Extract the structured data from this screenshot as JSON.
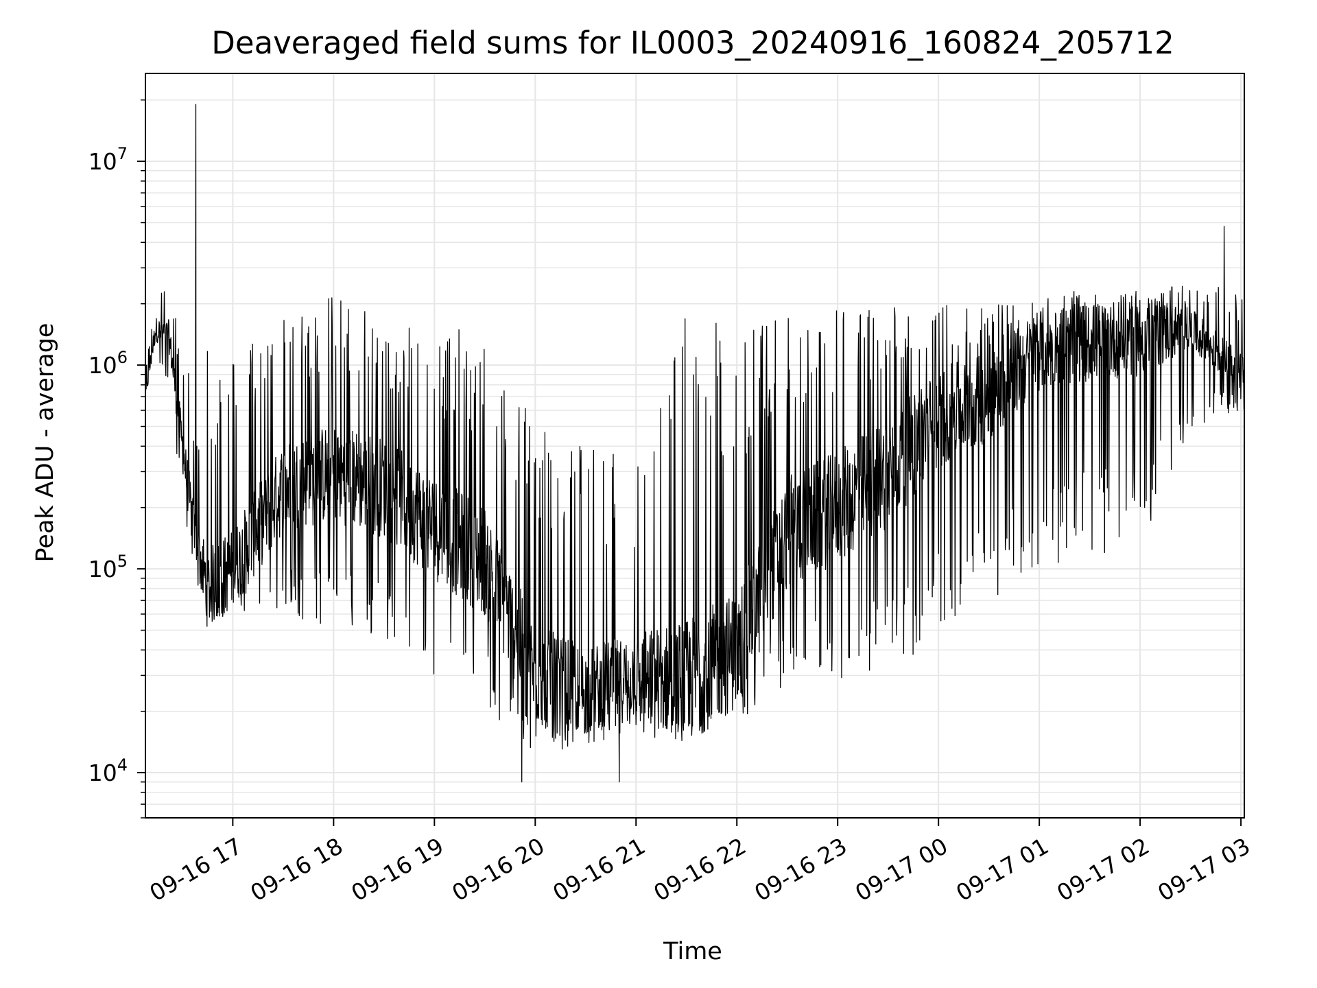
{
  "chart_data": {
    "type": "line",
    "title": "Deaveraged field sums for IL0003_20240916_160824_205712",
    "xlabel": "Time",
    "ylabel": "Peak ADU - average",
    "y_scale": "log",
    "ylim": [
      6000,
      27000000
    ],
    "xlim": [
      "09-16 16:08",
      "09-17 03:02"
    ],
    "grid": true,
    "line_color": "#000000",
    "grid_color": "#e6e6e6",
    "legend": "none",
    "x_ticks": [
      {
        "value": "09-16 17:00",
        "label": "09-16 17"
      },
      {
        "value": "09-16 18:00",
        "label": "09-16 18"
      },
      {
        "value": "09-16 19:00",
        "label": "09-16 19"
      },
      {
        "value": "09-16 20:00",
        "label": "09-16 20"
      },
      {
        "value": "09-16 21:00",
        "label": "09-16 21"
      },
      {
        "value": "09-16 22:00",
        "label": "09-16 22"
      },
      {
        "value": "09-16 23:00",
        "label": "09-16 23"
      },
      {
        "value": "09-17 00:00",
        "label": "09-17 00"
      },
      {
        "value": "09-17 01:00",
        "label": "09-17 01"
      },
      {
        "value": "09-17 02:00",
        "label": "09-17 02"
      },
      {
        "value": "09-17 03:00",
        "label": "09-17 03"
      }
    ],
    "y_ticks": [
      {
        "value": 10000,
        "base": "10",
        "exp": "4"
      },
      {
        "value": 100000,
        "base": "10",
        "exp": "5"
      },
      {
        "value": 1000000,
        "base": "10",
        "exp": "6"
      },
      {
        "value": 10000000,
        "base": "10",
        "exp": "7"
      }
    ],
    "envelope": {
      "x": [
        "09-16 16:08",
        "09-16 16:14",
        "09-16 16:22",
        "09-16 16:30",
        "09-16 16:37",
        "09-16 16:45",
        "09-16 17:00",
        "09-16 17:30",
        "09-16 18:00",
        "09-16 18:30",
        "09-16 19:00",
        "09-16 19:30",
        "09-16 20:00",
        "09-16 20:30",
        "09-16 21:00",
        "09-16 21:30",
        "09-16 22:00",
        "09-16 22:30",
        "09-16 23:00",
        "09-16 23:30",
        "09-17 00:00",
        "09-17 00:30",
        "09-17 01:00",
        "09-17 01:30",
        "09-17 02:00",
        "09-17 02:30",
        "09-17 03:02"
      ],
      "y_mid": [
        700000,
        1500000,
        1400000,
        400000,
        150000,
        80000,
        100000,
        250000,
        300000,
        250000,
        160000,
        110000,
        30000,
        25000,
        30000,
        28000,
        40000,
        150000,
        200000,
        300000,
        550000,
        700000,
        1200000,
        1300000,
        1400000,
        1500000,
        900000
      ],
      "y_low": [
        550000,
        1000000,
        800000,
        200000,
        90000,
        55000,
        60000,
        60000,
        50000,
        45000,
        30000,
        20000,
        12000,
        14000,
        14000,
        15000,
        18000,
        25000,
        28000,
        30000,
        45000,
        70000,
        100000,
        120000,
        110000,
        500000,
        600000
      ],
      "y_high": [
        900000,
        2500000,
        2600000,
        1200000,
        800000,
        1200000,
        1200000,
        2000000,
        2200000,
        2000000,
        1600000,
        1400000,
        600000,
        400000,
        350000,
        1800000,
        1500000,
        1800000,
        2000000,
        2000000,
        2000000,
        2000000,
        2300000,
        2300000,
        2400000,
        2500000,
        2400000
      ]
    },
    "spikes": [
      {
        "x": "09-16 16:38",
        "y": 19000000
      },
      {
        "x": "09-17 02:50",
        "y": 4800000
      },
      {
        "x": "09-16 20:21",
        "y": 280000
      },
      {
        "x": "09-16 19:52",
        "y": 9000
      },
      {
        "x": "09-16 20:50",
        "y": 9000
      }
    ]
  }
}
